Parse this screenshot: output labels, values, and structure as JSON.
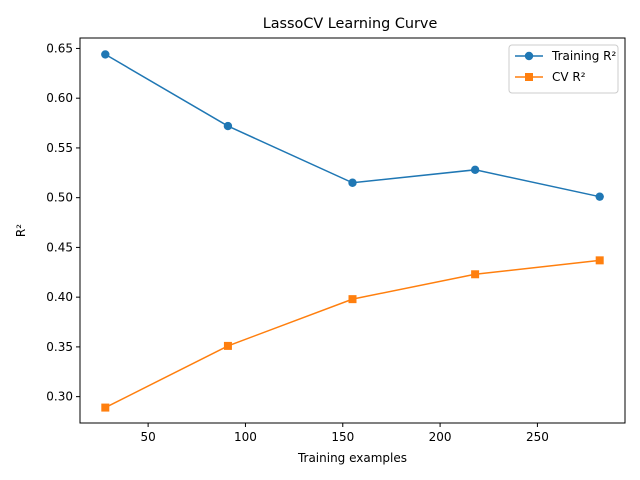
{
  "chart_data": {
    "type": "line",
    "title": "LassoCV Learning Curve",
    "xlabel": "Training examples",
    "ylabel": "R²",
    "xlim": [
      15,
      295
    ],
    "ylim": [
      0.2735,
      0.6605
    ],
    "xticks": [
      50,
      100,
      150,
      200,
      250
    ],
    "yticks": [
      0.3,
      0.35,
      0.4,
      0.45,
      0.5,
      0.55,
      0.6,
      0.65
    ],
    "grid": false,
    "legend_position": "upper-right",
    "x": [
      28,
      91,
      155,
      218,
      282
    ],
    "series": [
      {
        "name": "Training R²",
        "color": "#1f77b4",
        "marker": "circle",
        "values": [
          0.644,
          0.572,
          0.515,
          0.528,
          0.501
        ]
      },
      {
        "name": "CV R²",
        "color": "#ff7f0e",
        "marker": "square",
        "values": [
          0.289,
          0.351,
          0.398,
          0.423,
          0.437
        ]
      }
    ]
  }
}
